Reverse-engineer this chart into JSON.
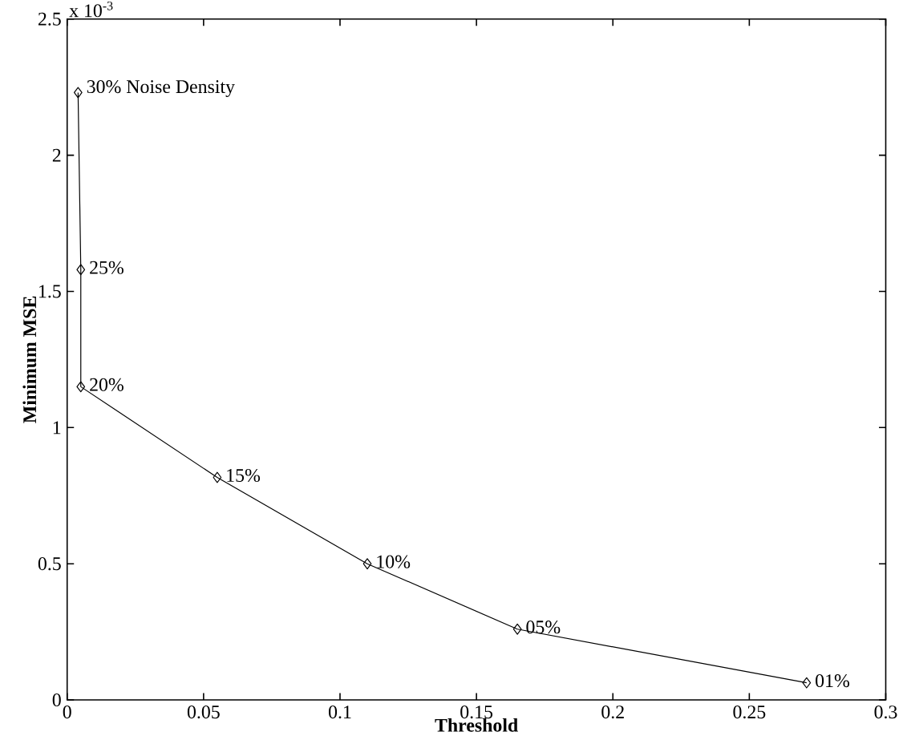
{
  "chart_data": {
    "type": "line",
    "xlabel": "Threshold",
    "ylabel": "Minimum MSE",
    "x": [
      0.004,
      0.005,
      0.005,
      0.055,
      0.11,
      0.165,
      0.271
    ],
    "series": [
      {
        "color": "#000000",
        "values": [
          2.23,
          1.58,
          1.15,
          0.817,
          0.5,
          0.26,
          0.063
        ]
      }
    ],
    "xlim": [
      0,
      0.3
    ],
    "ylim": [
      0,
      2.5
    ],
    "xticks": [
      0,
      0.05,
      0.1,
      0.15,
      0.2,
      0.25,
      0.3
    ],
    "yticks": [
      0,
      0.5,
      1,
      1.5,
      2,
      2.5
    ],
    "marker": "diamond",
    "line_style": "solid",
    "grid": false,
    "legend": false,
    "annotations": [
      "x 10$^{-3}$",
      {
        "text": "30% Noise Density",
        "x": 0.004,
        "y": 2.23
      },
      {
        "text": "25%",
        "x": 0.005,
        "y": 1.58
      },
      {
        "text": "20%",
        "x": 0.005,
        "y": 1.15
      },
      {
        "text": "15%",
        "x": 0.055,
        "y": 0.817
      },
      {
        "text": "10%",
        "x": 0.11,
        "y": 0.5
      },
      {
        "text": "05%",
        "x": 0.165,
        "y": 0.26
      },
      {
        "text": "01%",
        "x": 0.271,
        "y": 0.063
      }
    ]
  }
}
